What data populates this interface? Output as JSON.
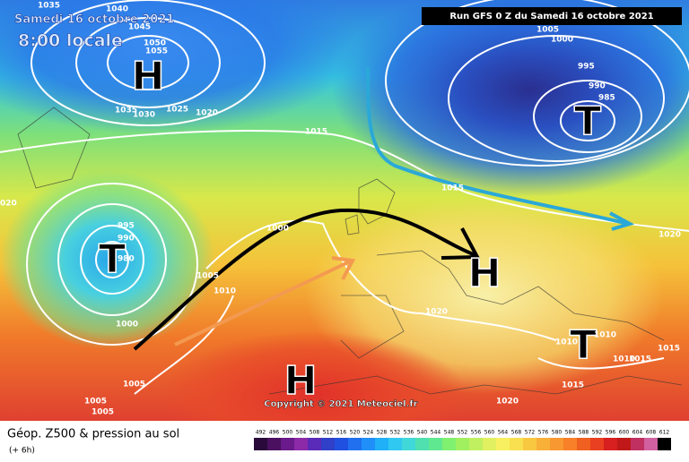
{
  "header": {
    "date": "Samedi 16 octobre 2021",
    "time": "8:00 locale",
    "run": "Run GFS 0 Z du Samedi 16 octobre 2021"
  },
  "map": {
    "systems": [
      "H",
      "T",
      "T",
      "H",
      "T",
      "H"
    ],
    "isobar_labels": [
      "1035",
      "1040",
      "1045",
      "1050",
      "1055",
      "1035",
      "1030",
      "1025",
      "1020",
      "1015",
      "1005",
      "1000",
      "995",
      "990",
      "985",
      "1015",
      "1020",
      "020",
      "995",
      "990",
      "980",
      "1000",
      "1005",
      "1010",
      "1000",
      "1005",
      "1005",
      "1005",
      "1020",
      "1010",
      "1010",
      "1015",
      "1010",
      "1015",
      "1015",
      "1020"
    ],
    "copyright": "Copyright © 2021 Meteociel.fr"
  },
  "legend": {
    "title": "Géop. Z500 & pression au sol",
    "lead": "(+ 6h)",
    "scale": [
      492,
      496,
      500,
      504,
      508,
      512,
      516,
      520,
      524,
      528,
      532,
      536,
      540,
      544,
      548,
      552,
      556,
      560,
      564,
      568,
      572,
      576,
      580,
      584,
      588,
      592,
      596,
      600,
      604,
      608,
      612
    ]
  }
}
